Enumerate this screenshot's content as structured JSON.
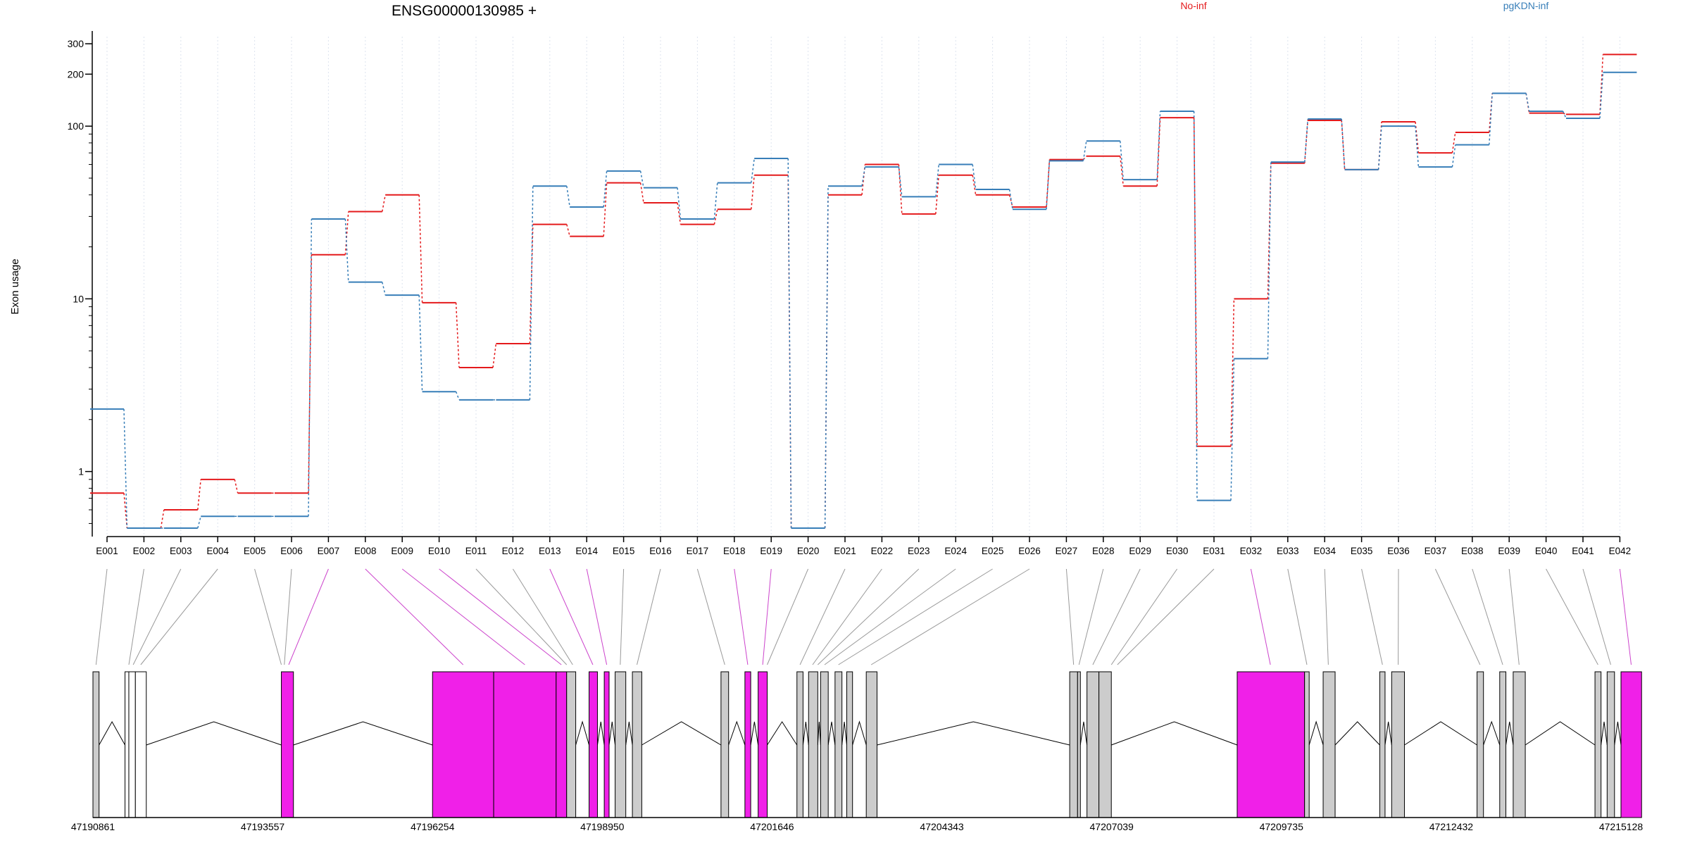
{
  "chart_data": {
    "type": "line",
    "title": "ENSG00000130985 +",
    "ylabel": "Exon usage",
    "yscale": "log",
    "ylim": [
      0.42,
      330
    ],
    "y_ticks": [
      1,
      10,
      100,
      200,
      300
    ],
    "grid": "vertical dotted lines at each exon",
    "legend_position": "top",
    "categories": [
      "E001",
      "E002",
      "E003",
      "E004",
      "E005",
      "E006",
      "E007",
      "E008",
      "E009",
      "E010",
      "E011",
      "E012",
      "E013",
      "E014",
      "E015",
      "E016",
      "E017",
      "E018",
      "E019",
      "E020",
      "E021",
      "E022",
      "E023",
      "E024",
      "E025",
      "E026",
      "E027",
      "E028",
      "E029",
      "E030",
      "E031",
      "E032",
      "E033",
      "E034",
      "E035",
      "E036",
      "E037",
      "E038",
      "E039",
      "E040",
      "E041",
      "E042"
    ],
    "series": [
      {
        "name": "No-inf",
        "color": "#e41a1c",
        "values": [
          0.75,
          0.47,
          0.6,
          0.9,
          0.75,
          0.75,
          18,
          32,
          40,
          9.5,
          4,
          5.5,
          27,
          23,
          47,
          36,
          27,
          33,
          52,
          0.47,
          40,
          60,
          31,
          52,
          40,
          34,
          64,
          67,
          45,
          112,
          1.4,
          10,
          61,
          108,
          56,
          106,
          70,
          92,
          155,
          119,
          117,
          260
        ]
      },
      {
        "name": "pgKDN-inf",
        "color": "#377eb8",
        "values": [
          2.3,
          0.47,
          0.47,
          0.55,
          0.55,
          0.55,
          29,
          12.5,
          10.5,
          2.9,
          2.6,
          2.6,
          45,
          34,
          55,
          44,
          29,
          47,
          65,
          0.47,
          45,
          58,
          39,
          60,
          43,
          33,
          63,
          82,
          49,
          122,
          0.68,
          4.5,
          62,
          110,
          56,
          100,
          58,
          78,
          155,
          122,
          111,
          205
        ]
      }
    ],
    "gene_model": {
      "coordinate_labels": [
        "47190861",
        "47193557",
        "47196254",
        "47198950",
        "47201646",
        "47204343",
        "47207039",
        "47209735",
        "47212432",
        "47215128"
      ],
      "coord_range": [
        47190861,
        47215128
      ],
      "colors": {
        "significant": "#f020e8",
        "normal": "#cccccc",
        "outside": "#ffffff"
      },
      "exons": [
        {
          "start": 47190861,
          "end": 47190958,
          "kind": "normal",
          "row": "E001"
        },
        {
          "start": 47191370,
          "end": 47191431,
          "kind": "outside"
        },
        {
          "start": 47191431,
          "end": 47191535,
          "kind": "outside",
          "row": "E002"
        },
        {
          "start": 47191535,
          "end": 47191708,
          "kind": "outside",
          "row": "E004"
        },
        {
          "start": 47193853,
          "end": 47194045,
          "kind": "significant",
          "row": "E006"
        },
        {
          "start": 47196254,
          "end": 47197225,
          "kind": "significant",
          "row": "E008"
        },
        {
          "start": 47197225,
          "end": 47198217,
          "kind": "significant",
          "row": "E009"
        },
        {
          "start": 47198217,
          "end": 47198384,
          "kind": "significant",
          "row": "E010"
        },
        {
          "start": 47198384,
          "end": 47198528,
          "kind": "normal",
          "row": "E011"
        },
        {
          "start": 47198740,
          "end": 47198873,
          "kind": "significant",
          "row": "E013"
        },
        {
          "start": 47198981,
          "end": 47199058,
          "kind": "significant",
          "row": "E014"
        },
        {
          "start": 47199154,
          "end": 47199323,
          "kind": "normal",
          "row": "E015"
        },
        {
          "start": 47199428,
          "end": 47199577,
          "kind": "normal",
          "row": "E016"
        },
        {
          "start": 47200835,
          "end": 47200956,
          "kind": "normal",
          "row": "E017"
        },
        {
          "start": 47201215,
          "end": 47201307,
          "kind": "significant",
          "row": "E018"
        },
        {
          "start": 47201425,
          "end": 47201569,
          "kind": "significant",
          "row": "E019"
        },
        {
          "start": 47202041,
          "end": 47202138,
          "kind": "normal",
          "row": "E020"
        },
        {
          "start": 47202226,
          "end": 47202372,
          "kind": "normal",
          "row": "E021"
        },
        {
          "start": 47202417,
          "end": 47202538,
          "kind": "normal",
          "row": "E022"
        },
        {
          "start": 47202646,
          "end": 47202756,
          "kind": "normal",
          "row": "E024"
        },
        {
          "start": 47202832,
          "end": 47202924,
          "kind": "normal",
          "row": "E025"
        },
        {
          "start": 47203142,
          "end": 47203313,
          "kind": "normal",
          "row": "E026"
        },
        {
          "start": 47206373,
          "end": 47206498,
          "kind": "normal",
          "row": "E027"
        },
        {
          "start": 47206498,
          "end": 47206542,
          "kind": "normal",
          "row": "E028"
        },
        {
          "start": 47206647,
          "end": 47206837,
          "kind": "normal",
          "row": "E029"
        },
        {
          "start": 47206837,
          "end": 47207034,
          "kind": "normal",
          "row": "E030"
        },
        {
          "start": 47209033,
          "end": 47210103,
          "kind": "significant",
          "row": "E032"
        },
        {
          "start": 47210103,
          "end": 47210176,
          "kind": "normal",
          "row": "E033"
        },
        {
          "start": 47210398,
          "end": 47210588,
          "kind": "normal",
          "row": "E034"
        },
        {
          "start": 47211297,
          "end": 47211381,
          "kind": "normal",
          "row": "E035"
        },
        {
          "start": 47211486,
          "end": 47211689,
          "kind": "normal",
          "row": "E036"
        },
        {
          "start": 47212842,
          "end": 47212944,
          "kind": "normal",
          "row": "E037"
        },
        {
          "start": 47213202,
          "end": 47213300,
          "kind": "normal",
          "row": "E038"
        },
        {
          "start": 47213416,
          "end": 47213608,
          "kind": "normal",
          "row": "E039"
        },
        {
          "start": 47214715,
          "end": 47214811,
          "kind": "normal",
          "row": "E040"
        },
        {
          "start": 47214908,
          "end": 47215025,
          "kind": "normal",
          "row": "E041"
        },
        {
          "start": 47215128,
          "end": 47215455,
          "kind": "significant",
          "row": "E042"
        }
      ],
      "links": [
        {
          "label": "E001",
          "at": 47190910,
          "color": "#999999"
        },
        {
          "label": "E002",
          "at": 47191431,
          "color": "#999999"
        },
        {
          "label": "E003",
          "at": 47191500,
          "color": "#999999"
        },
        {
          "label": "E004",
          "at": 47191620,
          "color": "#999999"
        },
        {
          "label": "E005",
          "at": 47193853,
          "color": "#999999"
        },
        {
          "label": "E006",
          "at": 47193900,
          "color": "#999999"
        },
        {
          "label": "E007",
          "at": 47193970,
          "color": "#cc44cc"
        },
        {
          "label": "E008",
          "at": 47196740,
          "color": "#cc44cc"
        },
        {
          "label": "E009",
          "at": 47197720,
          "color": "#cc44cc"
        },
        {
          "label": "E010",
          "at": 47198300,
          "color": "#cc44cc"
        },
        {
          "label": "E011",
          "at": 47198384,
          "color": "#999999"
        },
        {
          "label": "E012",
          "at": 47198480,
          "color": "#999999"
        },
        {
          "label": "E013",
          "at": 47198800,
          "color": "#cc44cc"
        },
        {
          "label": "E014",
          "at": 47199020,
          "color": "#cc44cc"
        },
        {
          "label": "E015",
          "at": 47199235,
          "color": "#999999"
        },
        {
          "label": "E016",
          "at": 47199500,
          "color": "#999999"
        },
        {
          "label": "E017",
          "at": 47200895,
          "color": "#999999"
        },
        {
          "label": "E018",
          "at": 47201260,
          "color": "#cc44cc"
        },
        {
          "label": "E019",
          "at": 47201497,
          "color": "#cc44cc"
        },
        {
          "label": "E020",
          "at": 47201569,
          "color": "#999999"
        },
        {
          "label": "E021",
          "at": 47202090,
          "color": "#999999"
        },
        {
          "label": "E022",
          "at": 47202290,
          "color": "#999999"
        },
        {
          "label": "E023",
          "at": 47202372,
          "color": "#999999"
        },
        {
          "label": "E024",
          "at": 47202480,
          "color": "#999999"
        },
        {
          "label": "E025",
          "at": 47202700,
          "color": "#999999"
        },
        {
          "label": "E026",
          "at": 47203220,
          "color": "#999999"
        },
        {
          "label": "E027",
          "at": 47206435,
          "color": "#999999"
        },
        {
          "label": "E028",
          "at": 47206520,
          "color": "#999999"
        },
        {
          "label": "E029",
          "at": 47206740,
          "color": "#999999"
        },
        {
          "label": "E030",
          "at": 47207034,
          "color": "#999999"
        },
        {
          "label": "E031",
          "at": 47207130,
          "color": "#999999"
        },
        {
          "label": "E032",
          "at": 47209560,
          "color": "#cc44cc"
        },
        {
          "label": "E033",
          "at": 47210140,
          "color": "#999999"
        },
        {
          "label": "E034",
          "at": 47210480,
          "color": "#999999"
        },
        {
          "label": "E035",
          "at": 47211340,
          "color": "#999999"
        },
        {
          "label": "E036",
          "at": 47211590,
          "color": "#999999"
        },
        {
          "label": "E037",
          "at": 47212890,
          "color": "#999999"
        },
        {
          "label": "E038",
          "at": 47213250,
          "color": "#999999"
        },
        {
          "label": "E039",
          "at": 47213510,
          "color": "#999999"
        },
        {
          "label": "E040",
          "at": 47214763,
          "color": "#999999"
        },
        {
          "label": "E041",
          "at": 47214965,
          "color": "#999999"
        },
        {
          "label": "E042",
          "at": 47215290,
          "color": "#cc44cc"
        }
      ]
    }
  }
}
